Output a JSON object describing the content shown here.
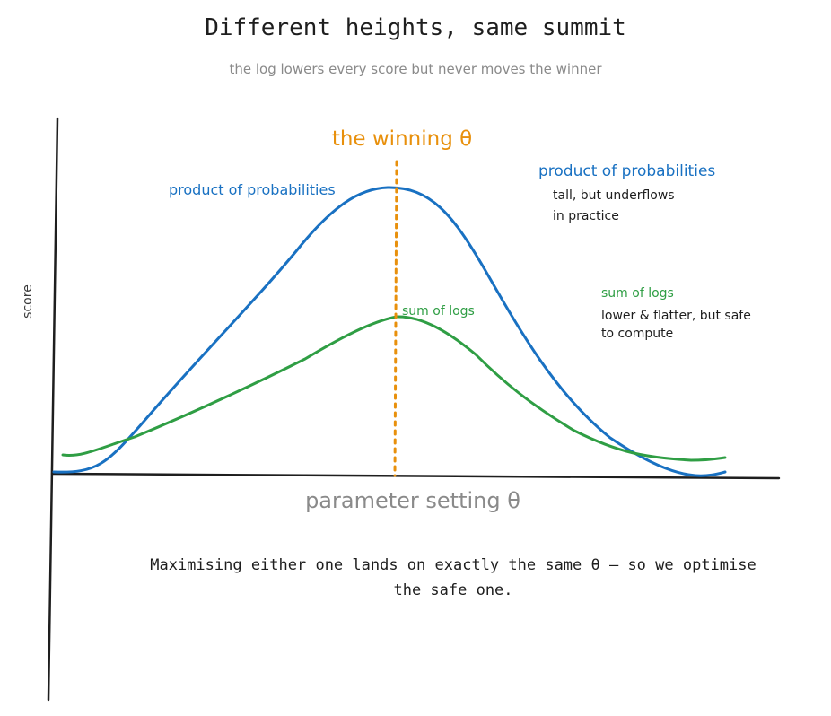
{
  "title": "Different heights, same summit",
  "subtitle": "the log lowers every score but never moves the winner",
  "caption": "Maximising either one lands on exactly the same θ – so we optimise the safe one.",
  "axes": {
    "y_label": "score",
    "x_label": "parameter setting θ"
  },
  "marker": {
    "label": "the winning θ",
    "color": "#e8900c"
  },
  "curves": {
    "product": {
      "label": "product of probabilities",
      "color": "#1971c2"
    },
    "logsum": {
      "label": "sum of logs",
      "color": "#2f9e44"
    }
  },
  "notes": {
    "product": {
      "title": "product of probabilities",
      "line1": "tall, but underflows",
      "line2": "in practice"
    },
    "logsum": {
      "title": "sum of logs",
      "line1": "lower & flatter, but safe",
      "line2": "to compute"
    }
  }
}
